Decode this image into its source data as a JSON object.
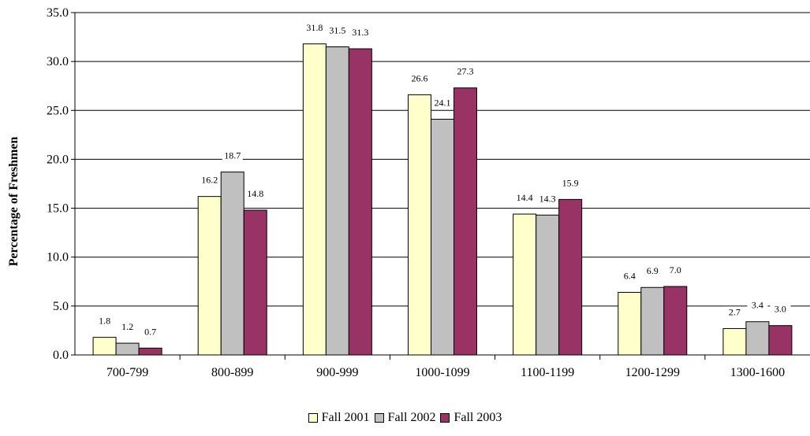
{
  "chart_data": {
    "type": "bar",
    "ylabel": "Percentage of Freshmen",
    "xlabel": "",
    "ylim": [
      0,
      35
    ],
    "yticks": [
      "0.0",
      "5.0",
      "10.0",
      "15.0",
      "20.0",
      "25.0",
      "30.0",
      "35.0"
    ],
    "grid": true,
    "legend_position": "bottom",
    "categories": [
      "700-799",
      "800-899",
      "900-999",
      "1000-1099",
      "1100-1199",
      "1200-1299",
      "1300-1600"
    ],
    "series": [
      {
        "name": "Fall 2001",
        "color": "#FFFFCC",
        "values": [
          1.8,
          16.2,
          31.8,
          26.6,
          14.4,
          6.4,
          2.7
        ]
      },
      {
        "name": "Fall 2002",
        "color": "#C0C0C0",
        "values": [
          1.2,
          18.7,
          31.5,
          24.1,
          14.3,
          6.9,
          3.4
        ]
      },
      {
        "name": "Fall 2003",
        "color": "#993366",
        "values": [
          0.7,
          14.8,
          31.3,
          27.3,
          15.9,
          7.0,
          3.0
        ]
      }
    ]
  }
}
